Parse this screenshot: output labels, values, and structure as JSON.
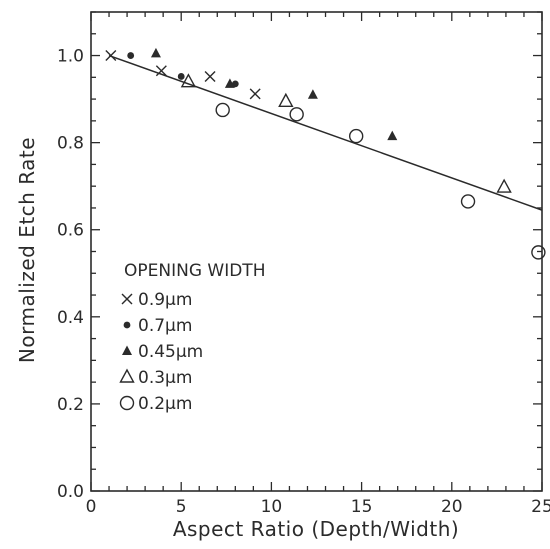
{
  "chart_data": {
    "type": "scatter",
    "title": "",
    "xlabel": "Aspect Ratio (Depth/Width)",
    "ylabel": "Normalized Etch Rate",
    "xlim": [
      0,
      25
    ],
    "ylim": [
      0.0,
      1.1
    ],
    "x_ticks": [
      "0",
      "5",
      "10",
      "15",
      "20",
      "25"
    ],
    "y_ticks": [
      "0.0",
      "0.2",
      "0.4",
      "0.6",
      "0.8",
      "1.0"
    ],
    "grid": false,
    "legend_title": "OPENING WIDTH",
    "legend_position": "lower-left",
    "series": [
      {
        "name": "0.9μm",
        "marker": "x",
        "x": [
          1.1,
          3.9,
          6.6,
          9.1
        ],
        "y": [
          1.0,
          0.965,
          0.952,
          0.912
        ]
      },
      {
        "name": "0.7μm",
        "marker": "filled-circle",
        "x": [
          2.2,
          5.0,
          8.0
        ],
        "y": [
          1.0,
          0.952,
          0.935
        ]
      },
      {
        "name": "0.45μm",
        "marker": "filled-triangle",
        "x": [
          3.6,
          7.7,
          12.3,
          16.7
        ],
        "y": [
          1.005,
          0.935,
          0.91,
          0.815
        ]
      },
      {
        "name": "0.3μm",
        "marker": "open-triangle",
        "x": [
          5.4,
          10.8,
          22.9
        ],
        "y": [
          0.94,
          0.895,
          0.698
        ]
      },
      {
        "name": "0.2μm",
        "marker": "open-circle",
        "x": [
          7.3,
          11.4,
          14.7,
          20.9,
          24.8
        ],
        "y": [
          0.875,
          0.865,
          0.815,
          0.665,
          0.548
        ]
      }
    ],
    "fit_line": {
      "x": [
        1.0,
        25.0
      ],
      "y": [
        1.0,
        0.645
      ]
    },
    "colors": {
      "ink": "#2b2b2b",
      "background": "#ffffff"
    }
  }
}
